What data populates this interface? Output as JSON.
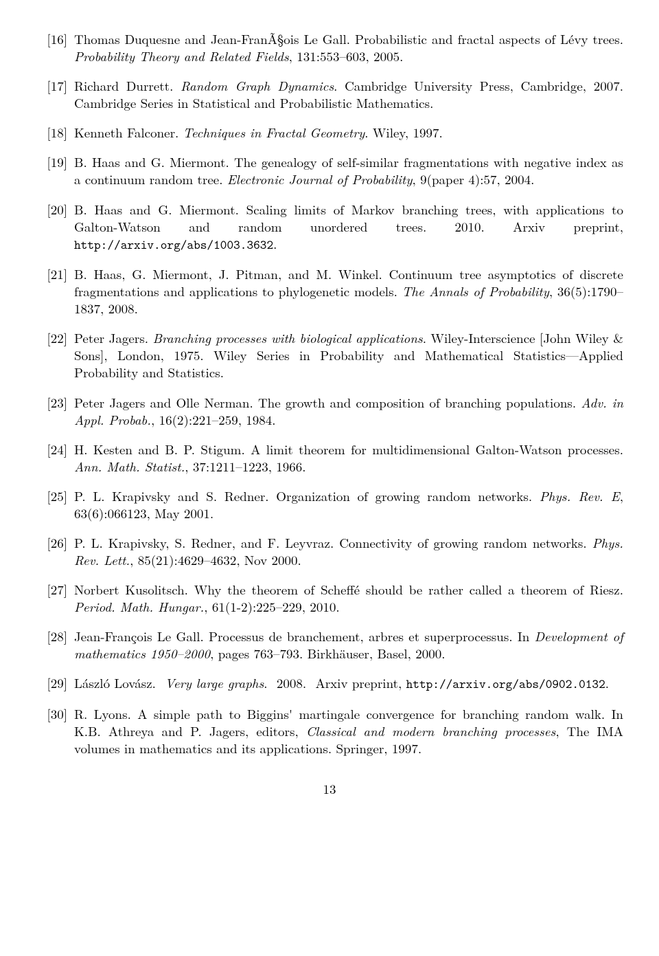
{
  "page_number": "13",
  "refs": [
    {
      "num": "[16]",
      "parts": [
        {
          "t": "Thomas Duquesne and Jean-FranÃ§ois Le Gall. Probabilistic and fractal aspects of Lévy trees. "
        },
        {
          "t": "Probability Theory and Related Fields",
          "style": "it"
        },
        {
          "t": ", 131:553–603, 2005."
        }
      ]
    },
    {
      "num": "[17]",
      "parts": [
        {
          "t": "Richard Durrett. "
        },
        {
          "t": "Random Graph Dynamics",
          "style": "it"
        },
        {
          "t": ". Cambridge University Press, Cambridge, 2007. Cambridge Series in Statistical and Probabilistic Mathematics."
        }
      ]
    },
    {
      "num": "[18]",
      "parts": [
        {
          "t": "Kenneth Falconer. "
        },
        {
          "t": "Techniques in Fractal Geometry",
          "style": "it"
        },
        {
          "t": ". Wiley, 1997."
        }
      ]
    },
    {
      "num": "[19]",
      "parts": [
        {
          "t": "B. Haas and G. Miermont. The genealogy of self-similar fragmentations with negative index as a continuum random tree. "
        },
        {
          "t": "Electronic Journal of Probability",
          "style": "it"
        },
        {
          "t": ", 9(paper 4):57, 2004."
        }
      ]
    },
    {
      "num": "[20]",
      "parts": [
        {
          "t": "B. Haas and G. Miermont.  Scaling limits of Markov branching trees, with applications to Galton-Watson and random unordered trees.  2010.  Arxiv preprint, "
        },
        {
          "t": "http://arxiv.org/abs/1003.3632",
          "style": "tt"
        },
        {
          "t": "."
        }
      ]
    },
    {
      "num": "[21]",
      "parts": [
        {
          "t": "B. Haas, G. Miermont, J. Pitman, and M. Winkel.  Continuum tree asymptotics of discrete fragmentations and applications to phylogenetic models. "
        },
        {
          "t": "The Annals of Probability",
          "style": "it"
        },
        {
          "t": ", 36(5):1790–1837, 2008."
        }
      ]
    },
    {
      "num": "[22]",
      "parts": [
        {
          "t": "Peter Jagers. "
        },
        {
          "t": "Branching processes with biological applications",
          "style": "it"
        },
        {
          "t": ". Wiley-Interscience [John Wiley & Sons], London, 1975. Wiley Series in Probability and Mathematical Statistics—Applied Probability and Statistics."
        }
      ]
    },
    {
      "num": "[23]",
      "parts": [
        {
          "t": "Peter Jagers and Olle Nerman. The growth and composition of branching populations. "
        },
        {
          "t": "Adv. in Appl. Probab.",
          "style": "it"
        },
        {
          "t": ", 16(2):221–259, 1984."
        }
      ]
    },
    {
      "num": "[24]",
      "parts": [
        {
          "t": "H. Kesten and B. P. Stigum. A limit theorem for multidimensional Galton-Watson processes. "
        },
        {
          "t": "Ann. Math. Statist.",
          "style": "it"
        },
        {
          "t": ", 37:1211–1223, 1966."
        }
      ]
    },
    {
      "num": "[25]",
      "parts": [
        {
          "t": "P. L. Krapivsky and S. Redner.  Organization of growing random networks.  "
        },
        {
          "t": "Phys. Rev. E",
          "style": "it"
        },
        {
          "t": ", 63(6):066123, May 2001."
        }
      ]
    },
    {
      "num": "[26]",
      "parts": [
        {
          "t": "P. L. Krapivsky, S. Redner, and F. Leyvraz.  Connectivity of growing random networks. "
        },
        {
          "t": "Phys. Rev. Lett.",
          "style": "it"
        },
        {
          "t": ", 85(21):4629–4632, Nov 2000."
        }
      ]
    },
    {
      "num": "[27]",
      "parts": [
        {
          "t": "Norbert Kusolitsch. Why the theorem of Scheffé should be rather called a theorem of Riesz. "
        },
        {
          "t": "Period. Math. Hungar.",
          "style": "it"
        },
        {
          "t": ", 61(1-2):225–229, 2010."
        }
      ]
    },
    {
      "num": "[28]",
      "parts": [
        {
          "t": "Jean-François Le Gall.  Processus de branchement, arbres et superprocessus.  In "
        },
        {
          "t": "Development of mathematics 1950–2000",
          "style": "it"
        },
        {
          "t": ", pages 763–793. Birkhäuser, Basel, 2000."
        }
      ]
    },
    {
      "num": "[29]",
      "parts": [
        {
          "t": "László   Lovász."
        },
        {
          "t": "",
          "style": "sp"
        },
        {
          "t": "Very   large   graphs",
          "style": "it"
        },
        {
          "t": "."
        },
        {
          "t": "",
          "style": "sp"
        },
        {
          "t": "2008."
        },
        {
          "t": "",
          "style": "sp"
        },
        {
          "t": "Arxiv   preprint, "
        },
        {
          "t": "http://arxiv.org/abs/0902.0132",
          "style": "tt"
        },
        {
          "t": "."
        }
      ]
    },
    {
      "num": "[30]",
      "parts": [
        {
          "t": "R. Lyons.  A simple path to Biggins' martingale convergence for branching random walk.  In K.B. Athreya and P. Jagers, editors, "
        },
        {
          "t": "Classical and modern branching processes",
          "style": "it"
        },
        {
          "t": ", The IMA volumes in mathematics and its applications. Springer, 1997."
        }
      ]
    }
  ]
}
